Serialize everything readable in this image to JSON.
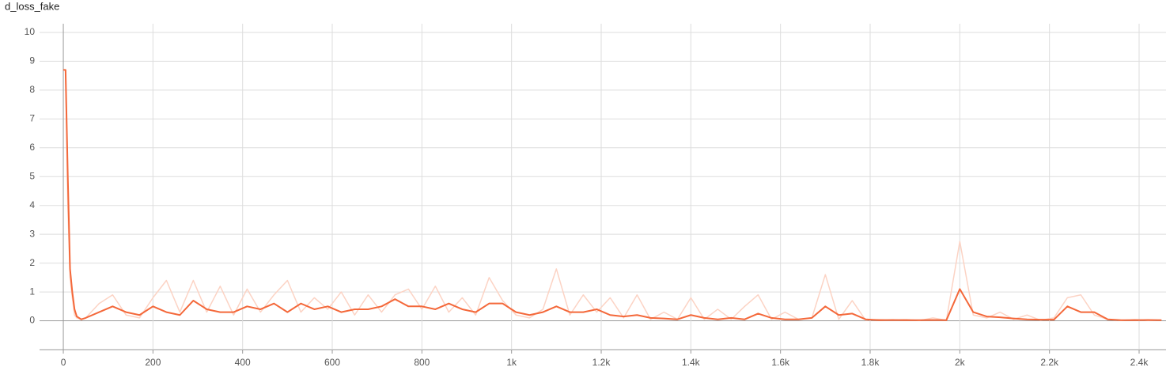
{
  "chart_data": {
    "type": "line",
    "title": "d_loss_fake",
    "x": [
      0,
      5,
      10,
      15,
      20,
      25,
      30,
      40,
      50,
      80,
      110,
      140,
      170,
      200,
      230,
      260,
      290,
      320,
      350,
      380,
      410,
      440,
      470,
      500,
      530,
      560,
      590,
      620,
      650,
      680,
      710,
      740,
      770,
      800,
      830,
      860,
      890,
      920,
      950,
      980,
      1010,
      1040,
      1070,
      1100,
      1130,
      1160,
      1190,
      1220,
      1250,
      1280,
      1310,
      1340,
      1370,
      1400,
      1430,
      1460,
      1490,
      1520,
      1550,
      1580,
      1610,
      1640,
      1670,
      1700,
      1730,
      1760,
      1790,
      1820,
      1850,
      1880,
      1910,
      1940,
      1970,
      2000,
      2030,
      2060,
      2090,
      2120,
      2150,
      2180,
      2210,
      2240,
      2270,
      2300,
      2330,
      2360,
      2390,
      2420,
      2450
    ],
    "series": [
      {
        "color": "#fcd3c4",
        "values": [
          8.7,
          8.7,
          4.0,
          1.5,
          0.8,
          0.2,
          0.1,
          0.05,
          0.1,
          0.6,
          0.9,
          0.2,
          0.1,
          0.8,
          1.4,
          0.3,
          1.4,
          0.3,
          1.2,
          0.2,
          1.1,
          0.3,
          0.9,
          1.4,
          0.3,
          0.8,
          0.4,
          1.0,
          0.2,
          0.9,
          0.3,
          0.9,
          1.1,
          0.4,
          1.2,
          0.3,
          0.8,
          0.2,
          1.5,
          0.7,
          0.2,
          0.1,
          0.4,
          1.8,
          0.2,
          0.9,
          0.3,
          0.8,
          0.1,
          0.9,
          0.05,
          0.3,
          0.05,
          0.8,
          0.05,
          0.4,
          0.05,
          0.5,
          0.9,
          0.05,
          0.3,
          0.05,
          0.1,
          1.6,
          0.05,
          0.7,
          0.02,
          0.05,
          0.02,
          0.05,
          0.01,
          0.1,
          0.02,
          2.75,
          0.2,
          0.1,
          0.3,
          0.05,
          0.2,
          0.02,
          0.1,
          0.8,
          0.9,
          0.2,
          0.05,
          0.01,
          0.05,
          0.01,
          0.03
        ]
      },
      {
        "color": "#f4683a",
        "values": [
          8.7,
          8.7,
          5.0,
          1.8,
          1.0,
          0.4,
          0.15,
          0.05,
          0.1,
          0.3,
          0.5,
          0.3,
          0.2,
          0.5,
          0.3,
          0.2,
          0.7,
          0.4,
          0.3,
          0.3,
          0.5,
          0.4,
          0.6,
          0.3,
          0.6,
          0.4,
          0.5,
          0.3,
          0.4,
          0.4,
          0.5,
          0.75,
          0.5,
          0.5,
          0.4,
          0.6,
          0.4,
          0.3,
          0.6,
          0.6,
          0.3,
          0.2,
          0.3,
          0.5,
          0.3,
          0.3,
          0.4,
          0.2,
          0.15,
          0.2,
          0.1,
          0.08,
          0.05,
          0.2,
          0.1,
          0.05,
          0.1,
          0.05,
          0.25,
          0.1,
          0.05,
          0.05,
          0.1,
          0.5,
          0.2,
          0.25,
          0.05,
          0.02,
          0.03,
          0.02,
          0.02,
          0.03,
          0.02,
          1.1,
          0.3,
          0.15,
          0.12,
          0.08,
          0.05,
          0.04,
          0.04,
          0.5,
          0.3,
          0.3,
          0.05,
          0.02,
          0.02,
          0.03,
          0.02
        ]
      }
    ],
    "xlim": [
      -53,
      2460
    ],
    "ylim": [
      -1,
      10.3
    ],
    "xticks": [
      0,
      200,
      400,
      600,
      800,
      {
        "value": 1000,
        "label": "1k"
      },
      {
        "value": 1200,
        "label": "1.2k"
      },
      {
        "value": 1400,
        "label": "1.4k"
      },
      {
        "value": 1600,
        "label": "1.6k"
      },
      {
        "value": 1800,
        "label": "1.8k"
      },
      {
        "value": 2000,
        "label": "2k"
      },
      {
        "value": 2200,
        "label": "2.2k"
      },
      {
        "value": 2400,
        "label": "2.4k"
      }
    ],
    "yticks": [
      0,
      1,
      2,
      3,
      4,
      5,
      6,
      7,
      8,
      9,
      10
    ],
    "grid": true
  }
}
